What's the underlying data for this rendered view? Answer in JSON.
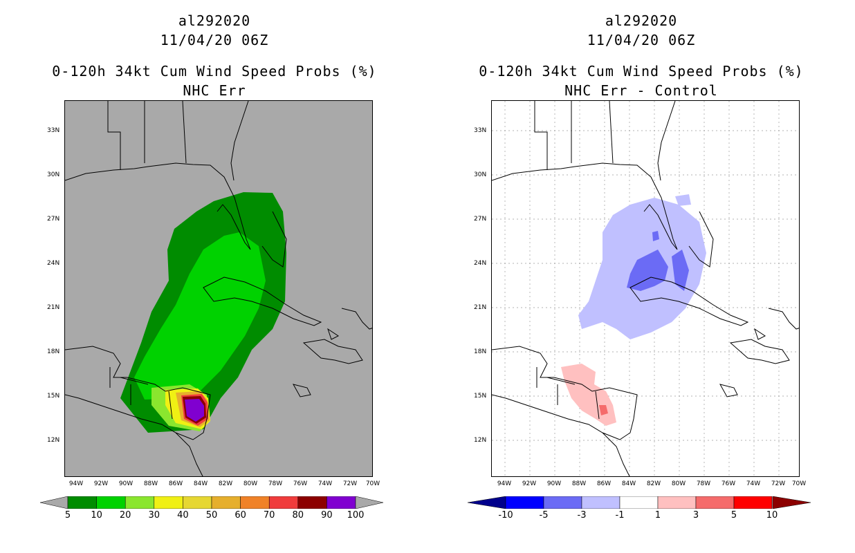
{
  "left_panel": {
    "storm_id": "al292020",
    "datetime": "11/04/20 06Z",
    "product": "0-120h 34kt Cum Wind Speed Probs (%)",
    "subtitle": "NHC Err",
    "background_color": "#a9a9a9",
    "colorbar": {
      "labels": [
        "5",
        "10",
        "20",
        "30",
        "40",
        "50",
        "60",
        "70",
        "80",
        "90",
        "100"
      ],
      "colors": [
        "#008c00",
        "#00d200",
        "#8ae62e",
        "#f0f014",
        "#e6d732",
        "#e6af2d",
        "#f08228",
        "#f03c3c",
        "#8c0000",
        "#8000d0"
      ]
    }
  },
  "right_panel": {
    "storm_id": "al292020",
    "datetime": "11/04/20 06Z",
    "product": "0-120h 34kt Cum Wind Speed Probs (%)",
    "subtitle": "NHC Err - Control",
    "background_color": "#ffffff",
    "colorbar": {
      "labels": [
        "-10",
        "-5",
        "-3",
        "-1",
        "1",
        "3",
        "5",
        "10"
      ],
      "colors": [
        "#0000ff",
        "#6b6bf5",
        "#c0c0ff",
        "#ffffff",
        "#ffc0c0",
        "#f56b6b",
        "#ff0000"
      ]
    }
  },
  "lat_labels": [
    "33N",
    "30N",
    "27N",
    "24N",
    "21N",
    "18N",
    "15N",
    "12N"
  ],
  "lon_labels": [
    "94W",
    "92W",
    "90W",
    "88W",
    "86W",
    "84W",
    "82W",
    "80W",
    "78W",
    "76W",
    "74W",
    "72W",
    "70W"
  ]
}
